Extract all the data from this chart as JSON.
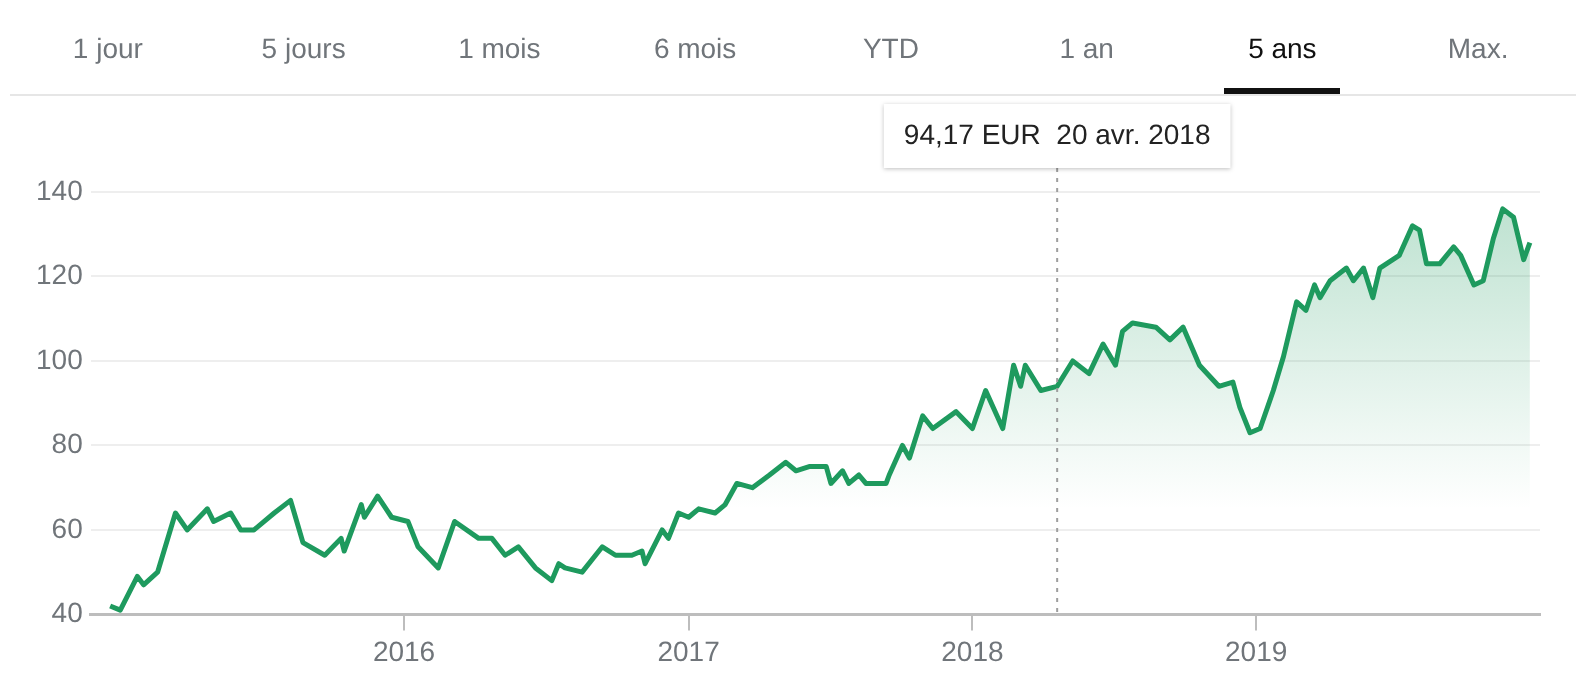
{
  "chart_data": {
    "type": "area",
    "annotations": [
      "1 jour",
      "5 jours",
      "1 mois",
      "6 mois",
      "YTD",
      "1 an",
      "5 ans",
      "Max.",
      "94,17 EUR  20 avr. 2018"
    ],
    "x": [
      "2014-12-19",
      "2015-01-01",
      "2015-01-23",
      "2015-01-31",
      "2015-02-18",
      "2015-03-13",
      "2015-03-28",
      "2015-04-23",
      "2015-05-01",
      "2015-05-23",
      "2015-06-05",
      "2015-06-22",
      "2015-07-18",
      "2015-08-08",
      "2015-08-24",
      "2015-09-21",
      "2015-10-12",
      "2015-10-16",
      "2015-11-07",
      "2015-11-11",
      "2015-11-28",
      "2015-12-16",
      "2016-01-06",
      "2016-01-19",
      "2016-02-14",
      "2016-03-06",
      "2016-04-06",
      "2016-04-23",
      "2016-05-10",
      "2016-05-27",
      "2016-06-18",
      "2016-07-09",
      "2016-07-18",
      "2016-07-26",
      "2016-08-17",
      "2016-09-12",
      "2016-09-29",
      "2016-10-20",
      "2016-11-02",
      "2016-11-06",
      "2016-11-28",
      "2016-12-06",
      "2016-12-19",
      "2017-01-01",
      "2017-01-14",
      "2017-02-04",
      "2017-02-17",
      "2017-03-04",
      "2017-03-24",
      "2017-04-15",
      "2017-05-06",
      "2017-05-19",
      "2017-06-05",
      "2017-06-27",
      "2017-07-03",
      "2017-07-18",
      "2017-07-26",
      "2017-08-08",
      "2017-08-17",
      "2017-09-12",
      "2017-09-16",
      "2017-10-03",
      "2017-10-12",
      "2017-10-29",
      "2017-11-11",
      "2017-12-11",
      "2018-01-01",
      "2018-01-18",
      "2018-02-09",
      "2018-02-23",
      "2018-03-04",
      "2018-03-10",
      "2018-03-30",
      "2018-04-20",
      "2018-05-10",
      "2018-05-31",
      "2018-06-18",
      "2018-07-04",
      "2018-07-13",
      "2018-07-26",
      "2018-08-25",
      "2018-09-12",
      "2018-09-29",
      "2018-10-20",
      "2018-11-14",
      "2018-12-02",
      "2018-12-11",
      "2018-12-24",
      "2019-01-06",
      "2019-01-23",
      "2019-02-05",
      "2019-02-22",
      "2019-03-06",
      "2019-03-17",
      "2019-03-24",
      "2019-04-06",
      "2019-04-27",
      "2019-05-06",
      "2019-05-19",
      "2019-05-31",
      "2019-06-09",
      "2019-07-04",
      "2019-07-21",
      "2019-07-30",
      "2019-08-08",
      "2019-08-25",
      "2019-09-12",
      "2019-09-21",
      "2019-10-08",
      "2019-10-20",
      "2019-11-02",
      "2019-11-14",
      "2019-11-28",
      "2019-12-11",
      "2019-12-19"
    ],
    "series": [
      {
        "color": "#1e9a5e",
        "values": [
          42,
          41,
          49,
          47,
          50,
          64,
          60,
          65,
          62,
          64,
          60,
          60,
          64,
          67,
          57,
          54,
          58,
          55,
          66,
          63,
          68,
          63,
          62,
          56,
          51,
          62,
          58,
          58,
          54,
          56,
          51,
          48,
          52,
          51,
          50,
          56,
          54,
          54,
          55,
          52,
          60,
          58,
          64,
          63,
          65,
          64,
          66,
          71,
          70,
          73,
          76,
          74,
          75,
          75,
          71,
          74,
          71,
          73,
          71,
          71,
          73,
          80,
          77,
          87,
          84,
          88,
          84,
          93,
          84,
          99,
          94,
          99,
          93,
          94,
          100,
          97,
          104,
          99,
          107,
          109,
          108,
          105,
          108,
          99,
          94,
          95,
          89,
          83,
          84,
          93,
          101,
          114,
          112,
          118,
          115,
          119,
          122,
          119,
          122,
          115,
          122,
          125,
          132,
          131,
          123,
          123,
          127,
          125,
          118,
          119,
          129,
          136,
          134,
          124,
          128
        ]
      }
    ],
    "xlim": [
      "2014-11-24",
      "2020-01-01"
    ],
    "xticks": [
      {
        "value": "2016-01-01",
        "label": "2016"
      },
      {
        "value": "2017-01-01",
        "label": "2017"
      },
      {
        "value": "2018-01-01",
        "label": "2018"
      },
      {
        "value": "2019-01-01",
        "label": "2019"
      }
    ],
    "ylim": [
      40,
      140
    ],
    "yticks": [
      40,
      60,
      80,
      100,
      120,
      140
    ],
    "ref_lines": [
      {
        "axis": "x",
        "value": "2018-04-20",
        "line_style": "dotted",
        "color": "#9e9e9e"
      }
    ],
    "grid": "y",
    "legend": false,
    "marker": "none",
    "line_style": "solid"
  }
}
